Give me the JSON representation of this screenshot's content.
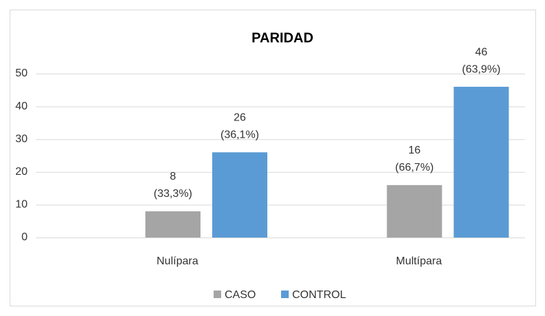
{
  "chart_data": {
    "type": "bar",
    "title": "PARIDAD",
    "categories": [
      "Nulípara",
      "Multípara"
    ],
    "series": [
      {
        "name": "CASO",
        "color": "#a5a5a5",
        "values": [
          8,
          16
        ],
        "value_labels": [
          [
            "8",
            "(33,3%)"
          ],
          [
            "16",
            "(66,7%)"
          ]
        ]
      },
      {
        "name": "CONTROL",
        "color": "#5b9bd5",
        "values": [
          26,
          46
        ],
        "value_labels": [
          [
            "26",
            "(36,1%)"
          ],
          [
            "46",
            "(63,9%)"
          ]
        ]
      }
    ],
    "ylim": [
      0,
      50
    ],
    "yticks": [
      0,
      10,
      20,
      30,
      40,
      50
    ],
    "grid": true,
    "legend": "bottom"
  }
}
